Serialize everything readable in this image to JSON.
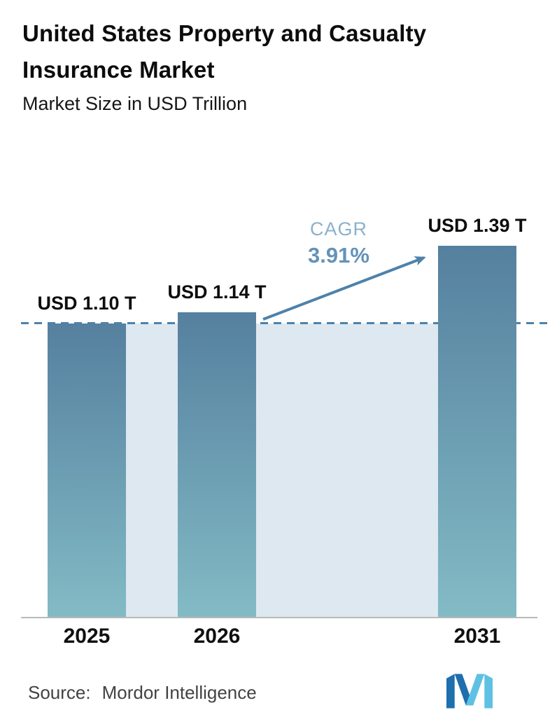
{
  "header": {
    "title_line1": "United States Property and Casualty",
    "title_line2": "Insurance Market",
    "subtitle": "Market Size in USD Trillion"
  },
  "chart_data": {
    "type": "bar",
    "title": "United States Property and Casualty Insurance Market",
    "subtitle": "Market Size in USD Trillion",
    "unit": "USD Trillion",
    "categories": [
      "2025",
      "2026",
      "2031"
    ],
    "values": [
      1.1,
      1.14,
      1.39
    ],
    "value_labels": [
      "USD 1.10 T",
      "USD 1.14 T",
      "USD 1.39 T"
    ],
    "reference_line_value": 1.1,
    "ylim": [
      0,
      1.45
    ],
    "grid": false,
    "legend": false,
    "annotations": {
      "cagr_label": "CAGR",
      "cagr_value": "3.91%",
      "arrow": "from top of 2026 bar to top of 2031 bar"
    },
    "colors": {
      "bar_top": "#55809f",
      "bar_bottom": "#83bbc5",
      "band": "#dde8f1",
      "line": "#4d82ab",
      "arrow_color": "#4d82ab",
      "cagr_label_color": "#8bb1cd",
      "cagr_value_color": "#6493b9",
      "axis_line": "#b9b9b9"
    }
  },
  "footer": {
    "source_label": "Source:",
    "source_value": "Mordor Intelligence",
    "logo_icon": "mordor-intelligence-logo",
    "logo_colors": {
      "dark": "#1e6fad",
      "light": "#5ec1e4"
    }
  }
}
